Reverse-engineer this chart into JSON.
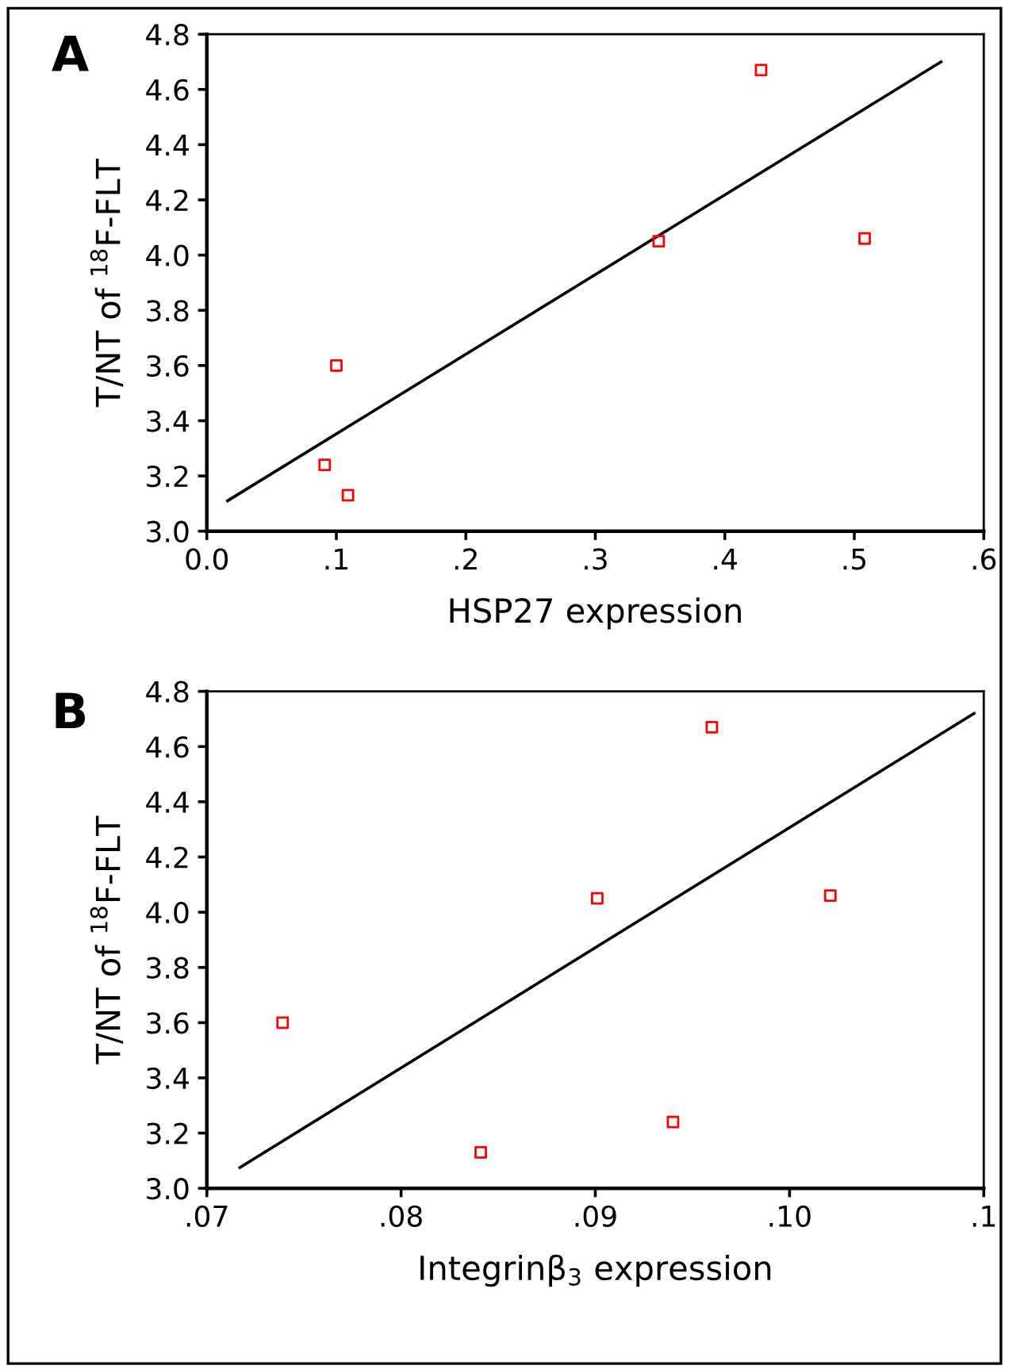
{
  "chart_data": [
    {
      "type": "scatter",
      "xlabel": "HSP27 expression",
      "ylabel": "T/NT of $^{18}$F-FLT",
      "annotations": [
        "A"
      ],
      "xlim": [
        0,
        0.6
      ],
      "xticks": [
        {
          "value": 0,
          "label": "0.0"
        },
        {
          "value": 0.1,
          "label": ".1"
        },
        {
          "value": 0.2,
          "label": ".2"
        },
        {
          "value": 0.3,
          "label": ".3"
        },
        {
          "value": 0.4,
          "label": ".4"
        },
        {
          "value": 0.5,
          "label": ".5"
        },
        {
          "value": 0.6,
          "label": ".6"
        }
      ],
      "ylim": [
        3.0,
        4.8
      ],
      "yticks": [
        {
          "value": 3.0,
          "label": "3.0"
        },
        {
          "value": 3.2,
          "label": "3.2"
        },
        {
          "value": 3.4,
          "label": "3.4"
        },
        {
          "value": 3.6,
          "label": "3.6"
        },
        {
          "value": 3.8,
          "label": "3.8"
        },
        {
          "value": 4.0,
          "label": "4.0"
        },
        {
          "value": 4.2,
          "label": "4.2"
        },
        {
          "value": 4.4,
          "label": "4.4"
        },
        {
          "value": 4.6,
          "label": "4.6"
        },
        {
          "value": 4.8,
          "label": "4.8"
        }
      ],
      "grid": false,
      "series": [
        {
          "marker": "square",
          "color": "#ff0000",
          "x": [
            0.091,
            0.1,
            0.109,
            0.349,
            0.428,
            0.508
          ],
          "values": [
            3.24,
            3.6,
            3.13,
            4.05,
            4.67,
            4.06
          ]
        },
        {
          "type": "line",
          "color": "#000000",
          "x": [
            0.016,
            0.567
          ],
          "values": [
            3.11,
            4.7
          ]
        }
      ]
    },
    {
      "type": "scatter",
      "xlabel": "Integrinβ$_{3}$ expression",
      "ylabel": "T/NT of $^{18}$F-FLT",
      "annotations": [
        "B"
      ],
      "xlim": [
        0.07,
        0.11
      ],
      "xticks": [
        {
          "value": 0.07,
          "label": ".07"
        },
        {
          "value": 0.08,
          "label": ".08"
        },
        {
          "value": 0.09,
          "label": ".09"
        },
        {
          "value": 0.1,
          "label": ".10"
        },
        {
          "value": 0.11,
          "label": ".1"
        }
      ],
      "ylim": [
        3.0,
        4.8
      ],
      "yticks": [
        {
          "value": 3.0,
          "label": "3.0"
        },
        {
          "value": 3.2,
          "label": "3.2"
        },
        {
          "value": 3.4,
          "label": "3.4"
        },
        {
          "value": 3.6,
          "label": "3.6"
        },
        {
          "value": 3.8,
          "label": "3.8"
        },
        {
          "value": 4.0,
          "label": "4.0"
        },
        {
          "value": 4.2,
          "label": "4.2"
        },
        {
          "value": 4.4,
          "label": "4.4"
        },
        {
          "value": 4.6,
          "label": "4.6"
        },
        {
          "value": 4.8,
          "label": "4.8"
        }
      ],
      "grid": false,
      "series": [
        {
          "marker": "square",
          "color": "#ff0000",
          "x": [
            0.0739,
            0.0841,
            0.0901,
            0.094,
            0.096,
            0.1021
          ],
          "values": [
            3.6,
            3.13,
            4.05,
            3.24,
            4.67,
            4.06
          ]
        },
        {
          "type": "line",
          "color": "#000000",
          "x": [
            0.0717,
            0.1095
          ],
          "values": [
            3.075,
            4.72
          ]
        }
      ]
    }
  ]
}
